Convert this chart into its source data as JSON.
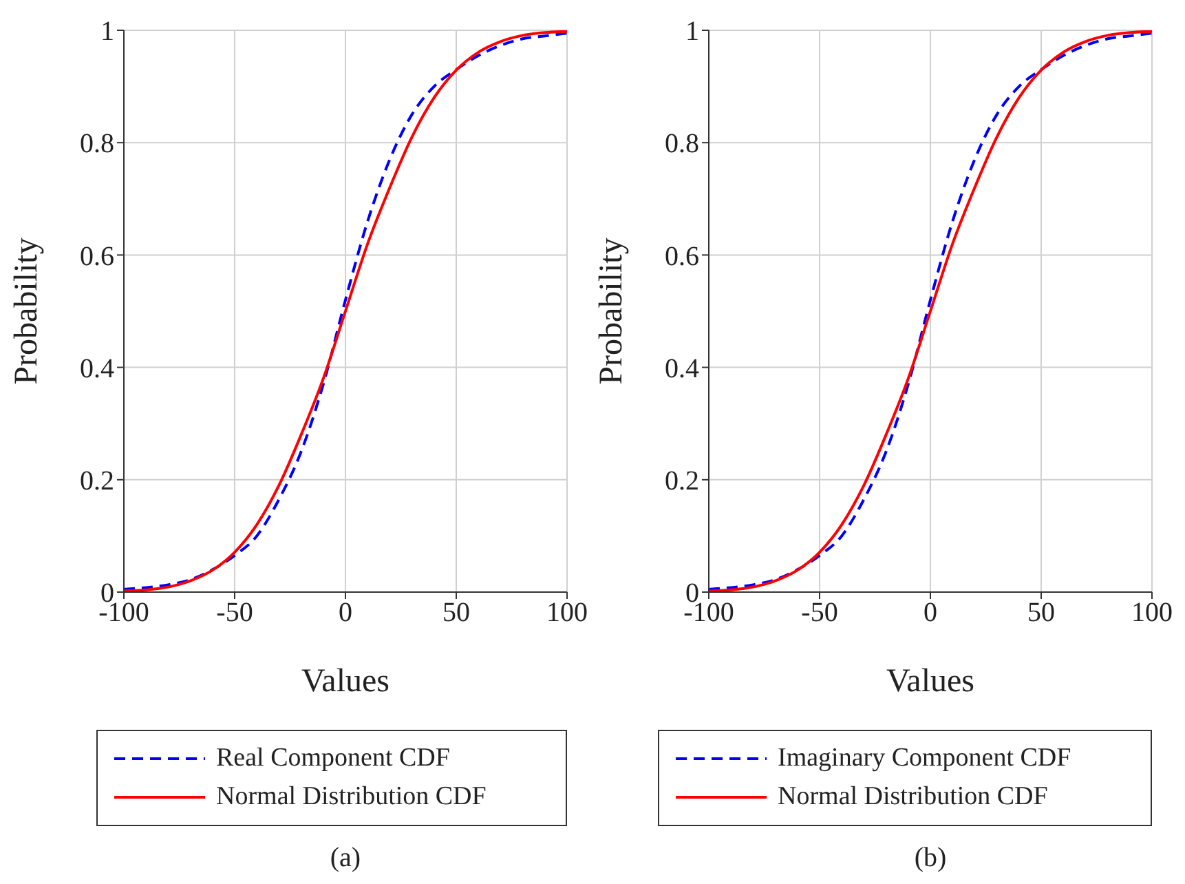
{
  "chart_data": [
    {
      "type": "line",
      "xlabel": "Values",
      "ylabel": "Probability",
      "legend": "bottom",
      "grid": true,
      "annotations": [
        "(a)"
      ],
      "xlim": [
        -100,
        100
      ],
      "xticks": [
        -100,
        -50,
        0,
        50,
        100
      ],
      "ylim": [
        0,
        1
      ],
      "yticks": [
        0,
        0.2,
        0.4,
        0.6,
        0.8,
        1
      ],
      "x": [
        -100,
        -90,
        -80,
        -70,
        -60,
        -50,
        -40,
        -30,
        -20,
        -10,
        0,
        10,
        20,
        30,
        40,
        50,
        60,
        70,
        80,
        90,
        100
      ],
      "series": [
        {
          "name": "Real Component CDF",
          "color": "#0000ff",
          "line_style": "dashed",
          "values": [
            0.005,
            0.008,
            0.013,
            0.022,
            0.04,
            0.065,
            0.1,
            0.165,
            0.25,
            0.37,
            0.52,
            0.66,
            0.77,
            0.85,
            0.9,
            0.93,
            0.955,
            0.973,
            0.985,
            0.99,
            0.995
          ]
        },
        {
          "name": "Normal Distribution CDF",
          "color": "#ff0000",
          "line_style": "solid",
          "values": [
            0.002,
            0.004,
            0.009,
            0.02,
            0.039,
            0.071,
            0.12,
            0.19,
            0.28,
            0.38,
            0.5,
            0.62,
            0.72,
            0.81,
            0.88,
            0.929,
            0.961,
            0.98,
            0.991,
            0.996,
            0.998
          ]
        }
      ]
    },
    {
      "type": "line",
      "xlabel": "Values",
      "ylabel": "Probability",
      "legend": "bottom",
      "grid": true,
      "annotations": [
        "(b)"
      ],
      "xlim": [
        -100,
        100
      ],
      "xticks": [
        -100,
        -50,
        0,
        50,
        100
      ],
      "ylim": [
        0,
        1
      ],
      "yticks": [
        0,
        0.2,
        0.4,
        0.6,
        0.8,
        1
      ],
      "x": [
        -100,
        -90,
        -80,
        -70,
        -60,
        -50,
        -40,
        -30,
        -20,
        -10,
        0,
        10,
        20,
        30,
        40,
        50,
        60,
        70,
        80,
        90,
        100
      ],
      "series": [
        {
          "name": "Imaginary Component CDF",
          "color": "#0000ff",
          "line_style": "dashed",
          "values": [
            0.005,
            0.008,
            0.013,
            0.022,
            0.04,
            0.065,
            0.1,
            0.165,
            0.25,
            0.37,
            0.52,
            0.66,
            0.77,
            0.85,
            0.9,
            0.93,
            0.955,
            0.973,
            0.985,
            0.99,
            0.995
          ]
        },
        {
          "name": "Normal Distribution CDF",
          "color": "#ff0000",
          "line_style": "solid",
          "values": [
            0.002,
            0.004,
            0.009,
            0.02,
            0.039,
            0.071,
            0.12,
            0.19,
            0.28,
            0.38,
            0.5,
            0.62,
            0.72,
            0.81,
            0.88,
            0.929,
            0.961,
            0.98,
            0.991,
            0.996,
            0.998
          ]
        }
      ]
    }
  ]
}
